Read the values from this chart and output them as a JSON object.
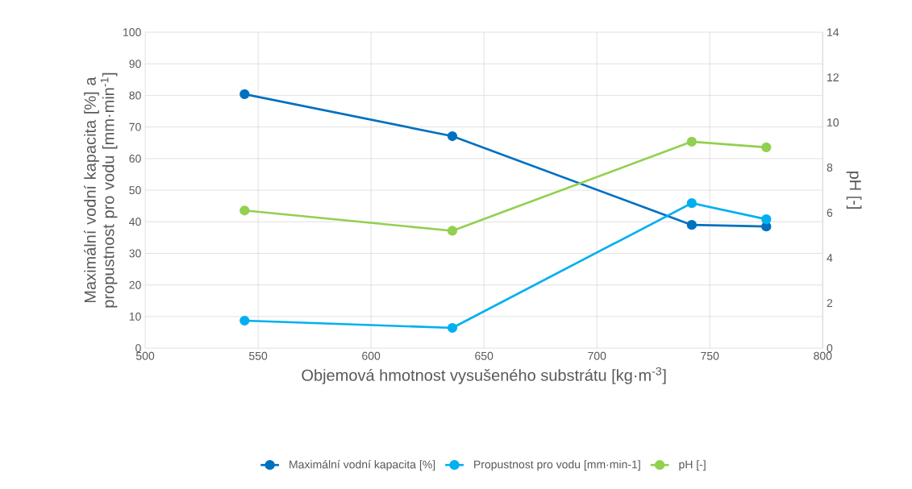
{
  "chart_data": {
    "type": "line",
    "xlabel": "Objemová hmotnost vysušeného substrátu [kg·m$^{-3}$]",
    "ylabel": "Maximální vodní kapacita [%] a propustnost pro vodu [mm·min$^{-1}$]",
    "y2label": "pH [-]",
    "x": [
      544,
      636,
      742,
      775
    ],
    "series": [
      {
        "name": "Maximální vodní kapacita [%]",
        "color": "#0070c0",
        "values": [
          80.4,
          67.1,
          39.0,
          38.5
        ]
      },
      {
        "name": "Propustnost pro vodu [mm·min-1]",
        "color": "#00b0f0",
        "values": [
          8.7,
          6.4,
          45.9,
          40.8
        ]
      },
      {
        "name": "pH [-]",
        "color": "#92d050",
        "values": [
          6.1,
          5.2,
          9.15,
          8.9
        ],
        "axis": "y2"
      }
    ],
    "xlim": [
      500,
      800
    ],
    "xticks": [
      500,
      550,
      600,
      650,
      700,
      750,
      800
    ],
    "ylim": [
      0,
      100
    ],
    "yticks": [
      0,
      10,
      20,
      30,
      40,
      50,
      60,
      70,
      80,
      90,
      100
    ],
    "y2lim": [
      0,
      14
    ],
    "y2ticks": [
      0,
      2,
      4,
      6,
      8,
      10,
      12,
      14
    ],
    "grid": true,
    "legend": "bottom",
    "marker": "circle",
    "line_style": "solid"
  }
}
